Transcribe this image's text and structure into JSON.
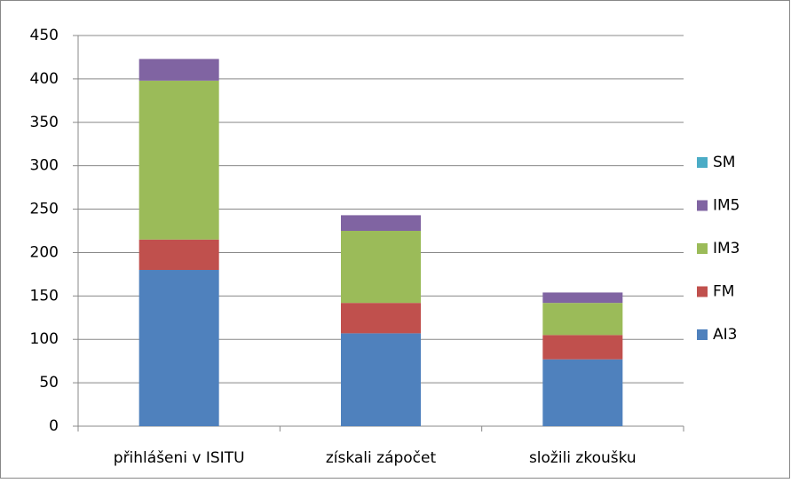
{
  "chart_data": {
    "type": "bar",
    "stacked": true,
    "categories": [
      "přihlášeni v ISITU",
      "získali zápočet",
      "složili zkoušku"
    ],
    "series": [
      {
        "name": "AI3",
        "color": "#4f81bd",
        "values": [
          180,
          107,
          77
        ]
      },
      {
        "name": "FM",
        "color": "#c0504d",
        "values": [
          35,
          35,
          28
        ]
      },
      {
        "name": "IM3",
        "color": "#9bbb59",
        "values": [
          183,
          83,
          37
        ]
      },
      {
        "name": "IM5",
        "color": "#8064a2",
        "values": [
          25,
          18,
          12
        ]
      },
      {
        "name": "SM",
        "color": "#4bacc6",
        "values": [
          0,
          0,
          0
        ]
      }
    ],
    "ylim": [
      0,
      450
    ],
    "yticks": [
      0,
      50,
      100,
      150,
      200,
      250,
      300,
      350,
      400,
      450
    ],
    "grid": true,
    "legend": "right"
  }
}
